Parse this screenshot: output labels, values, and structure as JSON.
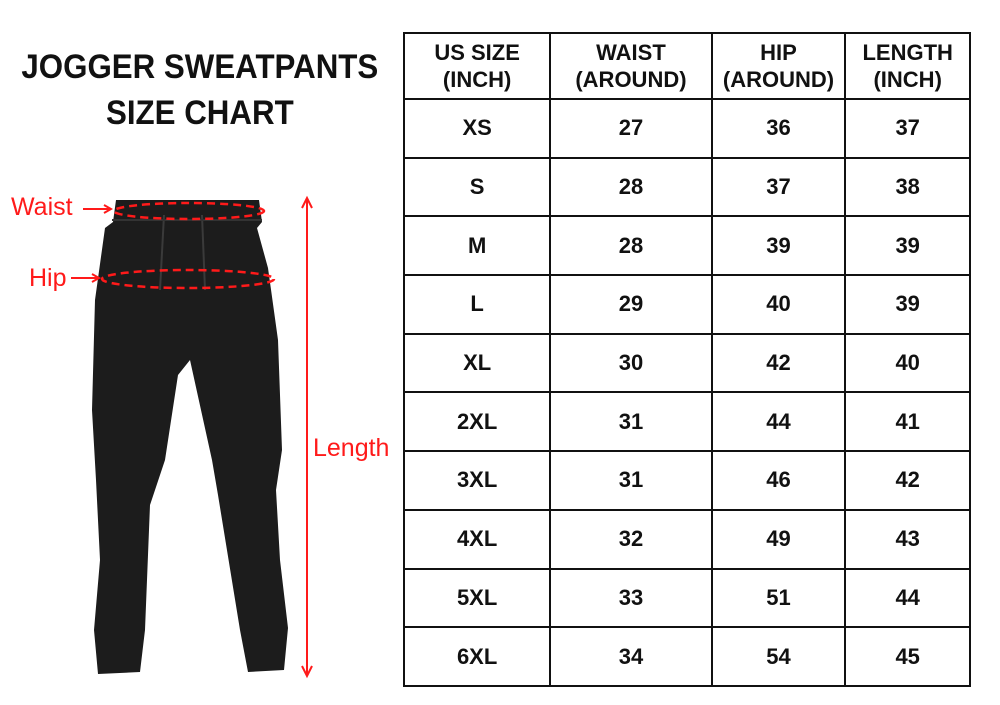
{
  "title": {
    "line1": "JOGGER SWEATPANTS",
    "line2": "SIZE CHART"
  },
  "diagram": {
    "waist_label": "Waist",
    "hip_label": "Hip",
    "length_label": "Length",
    "accent_color": "#ff1a1a"
  },
  "table": {
    "headers": [
      {
        "line1": "US SIZE",
        "line2": "(INCH)"
      },
      {
        "line1": "WAIST",
        "line2": "(AROUND)"
      },
      {
        "line1": "HIP",
        "line2": "(AROUND)"
      },
      {
        "line1": "LENGTH",
        "line2": "(INCH)"
      }
    ],
    "rows": [
      [
        "XS",
        "27",
        "36",
        "37"
      ],
      [
        "S",
        "28",
        "37",
        "38"
      ],
      [
        "M",
        "28",
        "39",
        "39"
      ],
      [
        "L",
        "29",
        "40",
        "39"
      ],
      [
        "XL",
        "30",
        "42",
        "40"
      ],
      [
        "2XL",
        "31",
        "44",
        "41"
      ],
      [
        "3XL",
        "31",
        "46",
        "42"
      ],
      [
        "4XL",
        "32",
        "49",
        "43"
      ],
      [
        "5XL",
        "33",
        "51",
        "44"
      ],
      [
        "6XL",
        "34",
        "54",
        "45"
      ]
    ]
  }
}
